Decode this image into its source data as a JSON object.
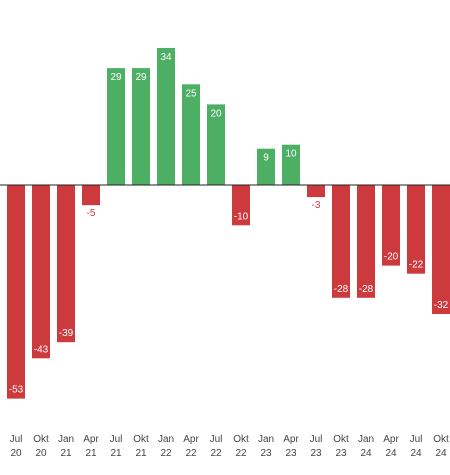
{
  "chart_data": {
    "type": "bar",
    "title": "",
    "xlabel": "",
    "ylabel": "",
    "ylim": [
      -53,
      34
    ],
    "grid": false,
    "legend": "none",
    "categories": [
      {
        "line1": "Jul",
        "line2": "20"
      },
      {
        "line1": "Okt",
        "line2": "20"
      },
      {
        "line1": "Jan",
        "line2": "21"
      },
      {
        "line1": "Apr",
        "line2": "21"
      },
      {
        "line1": "Jul",
        "line2": "21"
      },
      {
        "line1": "Okt",
        "line2": "21"
      },
      {
        "line1": "Jan",
        "line2": "22"
      },
      {
        "line1": "Apr",
        "line2": "22"
      },
      {
        "line1": "Jul",
        "line2": "22"
      },
      {
        "line1": "Okt",
        "line2": "22"
      },
      {
        "line1": "Jan",
        "line2": "23"
      },
      {
        "line1": "Apr",
        "line2": "23"
      },
      {
        "line1": "Jul",
        "line2": "23"
      },
      {
        "line1": "Okt",
        "line2": "23"
      },
      {
        "line1": "Jan",
        "line2": "24"
      },
      {
        "line1": "Apr",
        "line2": "24"
      },
      {
        "line1": "Jul",
        "line2": "24"
      },
      {
        "line1": "Okt",
        "line2": "24"
      }
    ],
    "values": [
      -53,
      -43,
      -39,
      -5,
      29,
      29,
      34,
      25,
      20,
      -10,
      9,
      10,
      -3,
      -28,
      -28,
      -20,
      -22,
      -32
    ],
    "data_labels": [
      "-53",
      "-43",
      "-39",
      "-5",
      "29",
      "29",
      "34",
      "25",
      "20",
      "-10",
      "9",
      "10",
      "-3",
      "-28",
      "-28",
      "-20",
      "-22",
      "-32"
    ],
    "colors": {
      "positive": "#4daf64",
      "negative": "#cd3a3d",
      "zero_line": "#222222",
      "label_inside": "#ffffff",
      "label_outside": "#cd3a3d",
      "tick_text": "#444444"
    }
  }
}
